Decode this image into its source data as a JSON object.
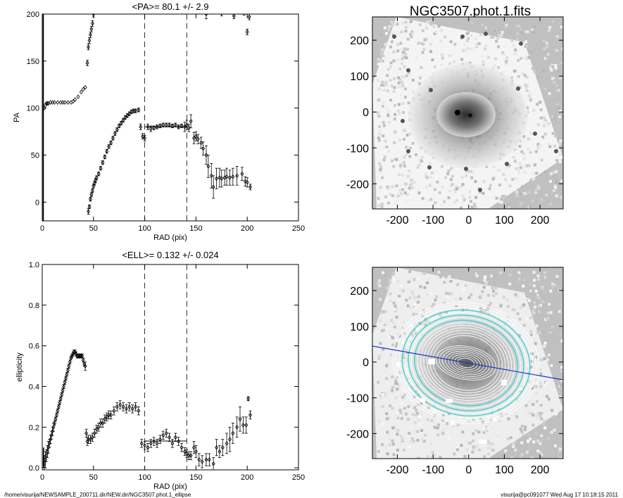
{
  "footer": {
    "path": "/home/visurija/NEWSAMPLE_200711.dir/NEW.dir/NGC3507.phot.1_ellipse",
    "stamp": "visurija@pc091077  Wed Aug 17 10:18:15 2011"
  },
  "images": {
    "title": "NGC3507.phot.1.fits",
    "ticks": [
      "-200",
      "-100",
      "0",
      "100",
      "200"
    ],
    "tick_values": [
      -200,
      -100,
      0,
      100,
      200
    ],
    "range": [
      -270,
      265
    ],
    "colors": {
      "background": "#c0c0c0",
      "isophote": "#ffffff",
      "fit_isophote": "#40d0d0",
      "pa_line": "#2030d0"
    }
  },
  "chart_data": [
    {
      "type": "scatter",
      "title": "<PA>=  80.1 +/-   2.9",
      "xlabel": "RAD (pix)",
      "ylabel": "PA",
      "xlim": [
        0,
        250
      ],
      "ylim": [
        -20,
        200
      ],
      "xticks": [
        0,
        50,
        100,
        150,
        200,
        250
      ],
      "yticks": [
        0,
        50,
        100,
        150,
        200
      ],
      "vlines": [
        100,
        141
      ],
      "mean_segment": {
        "x": [
          100,
          141
        ],
        "y": 80.1
      },
      "series": [
        {
          "name": "PA",
          "marker": "diamond",
          "x": [
            2,
            3,
            4,
            5,
            6,
            8,
            10,
            12,
            15,
            18,
            20,
            22,
            25,
            28,
            30,
            32,
            35,
            38,
            40,
            42,
            45,
            46,
            47,
            48,
            49,
            50,
            51,
            52,
            53,
            55,
            57,
            59,
            61,
            63,
            65,
            67,
            69,
            71,
            73,
            75,
            77,
            79,
            81,
            83,
            85,
            87,
            89,
            91,
            94,
            96,
            98,
            100,
            103,
            106,
            109,
            112,
            115,
            118,
            121,
            124,
            127,
            130,
            133,
            136,
            139,
            141,
            143,
            145,
            148,
            150,
            152,
            155,
            157,
            160,
            162,
            165,
            167,
            170,
            173,
            175,
            178,
            180,
            183,
            186,
            190,
            195,
            198,
            200,
            203
          ],
          "y": [
            100,
            103,
            105,
            105,
            105,
            106,
            106,
            106,
            106,
            106,
            106,
            106,
            106,
            106,
            107,
            109,
            112,
            117,
            120,
            122,
            -10,
            -5,
            3,
            8,
            12,
            17,
            20,
            23,
            26,
            30,
            36,
            42,
            48,
            54,
            59,
            63,
            68,
            73,
            77,
            81,
            84,
            87,
            90,
            92,
            94,
            96,
            97,
            97,
            98,
            80,
            70,
            68,
            80,
            78,
            79,
            80,
            81,
            82,
            82,
            82,
            81,
            82,
            80,
            81,
            80,
            82,
            79,
            86,
            68,
            70,
            67,
            63,
            57,
            50,
            38,
            28,
            16,
            25,
            26,
            25,
            26,
            27,
            26,
            27,
            28,
            30,
            22,
            21,
            16
          ],
          "err": [
            0,
            0,
            0,
            0,
            0,
            0,
            0,
            0,
            0,
            0,
            0,
            0,
            0,
            0,
            0,
            0,
            0,
            0,
            0,
            0,
            3,
            2,
            2,
            2,
            2,
            2,
            2,
            2,
            2,
            2,
            2,
            2,
            2,
            2,
            2,
            2,
            2,
            2,
            2,
            2,
            2,
            2,
            2,
            2,
            2,
            2,
            2,
            2,
            2,
            3,
            3,
            3,
            3,
            3,
            2,
            2,
            2,
            2,
            2,
            2,
            2,
            2,
            2,
            2,
            5,
            5,
            4,
            7,
            6,
            5,
            5,
            6,
            7,
            10,
            12,
            13,
            12,
            11,
            10,
            9,
            8,
            9,
            8,
            9,
            10,
            7,
            5,
            5,
            3
          ]
        },
        {
          "name": "PA_wrapped",
          "marker": "diamond",
          "x": [
            44,
            45,
            46,
            47,
            48,
            49,
            50,
            160,
            175,
            187,
            197,
            200,
            202
          ],
          "y": [
            148,
            165,
            172,
            178,
            184,
            190,
            200,
            200,
            201,
            198,
            202,
            181,
            197
          ],
          "err": [
            3,
            3,
            3,
            3,
            3,
            3,
            3,
            5,
            3,
            3,
            3,
            3,
            3
          ]
        }
      ]
    },
    {
      "type": "scatter",
      "title": "<ELL>= 0.132 +/-  0.024",
      "xlabel": "RAD (pix)",
      "ylabel": "ellipticity",
      "xlim": [
        0,
        250
      ],
      "ylim": [
        -0.01,
        1.0
      ],
      "xticks": [
        0,
        50,
        100,
        150,
        200,
        250
      ],
      "yticks": [
        0.0,
        0.2,
        0.4,
        0.6,
        0.8,
        1.0
      ],
      "vlines": [
        100,
        141
      ],
      "mean_segment": {
        "x": [
          100,
          141
        ],
        "y": 0.132
      },
      "series": [
        {
          "name": "ELL",
          "marker": "diamond",
          "x": [
            2,
            3,
            4,
            5,
            6,
            7,
            8,
            9,
            10,
            11,
            12,
            13,
            14,
            15,
            16,
            17,
            18,
            19,
            20,
            21,
            22,
            23,
            24,
            25,
            26,
            27,
            28,
            29,
            30,
            31,
            32,
            33,
            34,
            35,
            36,
            37,
            38,
            39,
            40,
            41,
            42,
            43,
            44,
            45,
            47,
            49,
            51,
            53,
            55,
            57,
            59,
            61,
            63,
            65,
            67,
            70,
            73,
            76,
            79,
            82,
            85,
            88,
            91,
            94,
            97,
            100,
            103,
            106,
            109,
            112,
            115,
            118,
            121,
            124,
            127,
            130,
            133,
            136,
            139,
            141,
            143,
            145,
            148,
            150,
            153,
            156,
            160,
            163,
            167,
            170,
            173,
            176,
            180,
            183,
            186,
            190,
            193,
            196,
            199,
            201,
            203
          ],
          "x2": [],
          "y": [
            0.02,
            0.04,
            0.06,
            0.08,
            0.1,
            0.12,
            0.14,
            0.16,
            0.18,
            0.2,
            0.22,
            0.24,
            0.26,
            0.28,
            0.3,
            0.32,
            0.34,
            0.36,
            0.38,
            0.4,
            0.42,
            0.44,
            0.46,
            0.48,
            0.5,
            0.52,
            0.54,
            0.55,
            0.56,
            0.57,
            0.57,
            0.56,
            0.55,
            0.55,
            0.55,
            0.55,
            0.55,
            0.55,
            0.53,
            0.51,
            0.5,
            0.17,
            0.13,
            0.14,
            0.14,
            0.15,
            0.17,
            0.19,
            0.2,
            0.22,
            0.22,
            0.24,
            0.25,
            0.26,
            0.26,
            0.28,
            0.3,
            0.31,
            0.3,
            0.29,
            0.3,
            0.29,
            0.3,
            0.28,
            0.12,
            0.11,
            0.1,
            0.12,
            0.13,
            0.12,
            0.14,
            0.16,
            0.17,
            0.15,
            0.12,
            0.15,
            0.13,
            0.1,
            0.08,
            0.07,
            0.06,
            0.06,
            0.1,
            0.08,
            0.04,
            0.03,
            0.04,
            0.04,
            0.02,
            0.1,
            0.08,
            0.1,
            0.12,
            0.14,
            0.17,
            0.2,
            0.24,
            0.21,
            0.21,
            0.34,
            0.26
          ],
          "err": [
            0.04,
            0.04,
            0.03,
            0.03,
            0.03,
            0.02,
            0.02,
            0.02,
            0.02,
            0.02,
            0.01,
            0.01,
            0.01,
            0.01,
            0.01,
            0.01,
            0.01,
            0.01,
            0.01,
            0.01,
            0.01,
            0.01,
            0.01,
            0.01,
            0.01,
            0.01,
            0.01,
            0.01,
            0.01,
            0.01,
            0.01,
            0.01,
            0.01,
            0.01,
            0.01,
            0.01,
            0.01,
            0.01,
            0.01,
            0.01,
            0.02,
            0.02,
            0.02,
            0.02,
            0.02,
            0.02,
            0.02,
            0.02,
            0.02,
            0.02,
            0.02,
            0.02,
            0.02,
            0.02,
            0.02,
            0.02,
            0.02,
            0.02,
            0.02,
            0.02,
            0.02,
            0.02,
            0.02,
            0.02,
            0.02,
            0.02,
            0.02,
            0.02,
            0.02,
            0.02,
            0.02,
            0.02,
            0.02,
            0.02,
            0.02,
            0.02,
            0.02,
            0.02,
            0.02,
            0.02,
            0.02,
            0.02,
            0.03,
            0.03,
            0.03,
            0.03,
            0.03,
            0.03,
            0.03,
            0.04,
            0.03,
            0.04,
            0.05,
            0.06,
            0.05,
            0.05,
            0.06,
            0.04,
            0.04,
            0.01,
            0.02
          ]
        }
      ]
    }
  ]
}
